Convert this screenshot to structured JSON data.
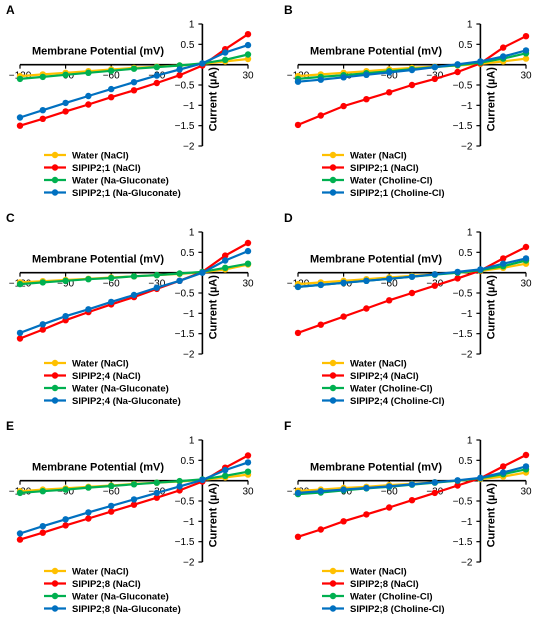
{
  "chart_data": [
    {
      "panel": "A",
      "type": "line",
      "xlabel": "Membrane Potential (mV)",
      "ylabel": "Current (µA)",
      "xlim": [
        -120,
        30
      ],
      "ylim": [
        -2,
        1
      ],
      "x_ticks": [
        -120,
        -90,
        -60,
        -30,
        30
      ],
      "y_ticks": [
        1,
        0.5,
        -0.5,
        -1,
        -1.5,
        -2
      ],
      "x": [
        -120,
        -105,
        -90,
        -75,
        -60,
        -45,
        -30,
        -15,
        0,
        15,
        30
      ],
      "series": [
        {
          "name": "Water (NaCl)",
          "color": "#FFC000",
          "values": [
            -0.28,
            -0.24,
            -0.2,
            -0.16,
            -0.12,
            -0.08,
            -0.05,
            -0.02,
            0.02,
            0.08,
            0.14
          ]
        },
        {
          "name": "SlPIP2;1 (NaCl)",
          "color": "#FF0000",
          "values": [
            -1.5,
            -1.33,
            -1.15,
            -0.98,
            -0.8,
            -0.63,
            -0.45,
            -0.26,
            -0.02,
            0.38,
            0.75
          ]
        },
        {
          "name": "Water (Na-Gluconate)",
          "color": "#00B050",
          "values": [
            -0.35,
            -0.3,
            -0.25,
            -0.2,
            -0.15,
            -0.1,
            -0.06,
            -0.02,
            0.03,
            0.12,
            0.25
          ]
        },
        {
          "name": "SlPIP2;1 (Na-Gluconate)",
          "color": "#0070C0",
          "values": [
            -1.3,
            -1.12,
            -0.94,
            -0.77,
            -0.6,
            -0.43,
            -0.27,
            -0.12,
            0.03,
            0.3,
            0.48
          ]
        }
      ],
      "legend": "bottom"
    },
    {
      "panel": "B",
      "type": "line",
      "xlabel": "Membrane Potential (mV)",
      "ylabel": "Current (µA)",
      "xlim": [
        -120,
        30
      ],
      "ylim": [
        -2,
        1
      ],
      "x_ticks": [
        -120,
        -90,
        -60,
        -30,
        30
      ],
      "y_ticks": [
        1,
        0.5,
        -0.5,
        -1,
        -1.5,
        -2
      ],
      "x": [
        -120,
        -105,
        -90,
        -75,
        -60,
        -45,
        -30,
        -15,
        0,
        15,
        30
      ],
      "series": [
        {
          "name": "Water (NaCl)",
          "color": "#FFC000",
          "values": [
            -0.28,
            -0.24,
            -0.2,
            -0.16,
            -0.12,
            -0.08,
            -0.05,
            -0.02,
            0.02,
            0.08,
            0.15
          ]
        },
        {
          "name": "SlPIP2;1 (NaCl)",
          "color": "#FF0000",
          "values": [
            -1.48,
            -1.25,
            -1.02,
            -0.85,
            -0.68,
            -0.5,
            -0.35,
            -0.18,
            0.03,
            0.42,
            0.7
          ]
        },
        {
          "name": "Water (Choline-Cl)",
          "color": "#00B050",
          "values": [
            -0.35,
            -0.3,
            -0.26,
            -0.21,
            -0.16,
            -0.11,
            -0.06,
            -0.01,
            0.05,
            0.15,
            0.28
          ]
        },
        {
          "name": "SlPIP2;1 (Choline-Cl)",
          "color": "#0070C0",
          "values": [
            -0.42,
            -0.37,
            -0.31,
            -0.25,
            -0.19,
            -0.13,
            -0.06,
            0.01,
            0.08,
            0.2,
            0.35
          ]
        }
      ],
      "legend": "bottom"
    },
    {
      "panel": "C",
      "type": "line",
      "xlabel": "Membrane Potential (mV)",
      "ylabel": "Current (µA)",
      "xlim": [
        -120,
        30
      ],
      "ylim": [
        -2,
        1
      ],
      "x_ticks": [
        -120,
        -90,
        -60,
        -30,
        30
      ],
      "y_ticks": [
        1,
        0.5,
        -0.5,
        -1,
        -1.5,
        -2
      ],
      "x": [
        -120,
        -105,
        -90,
        -75,
        -60,
        -45,
        -30,
        -15,
        0,
        15,
        30
      ],
      "series": [
        {
          "name": "Water (NaCl)",
          "color": "#FFC000",
          "values": [
            -0.24,
            -0.21,
            -0.18,
            -0.15,
            -0.12,
            -0.09,
            -0.06,
            -0.03,
            0.01,
            0.08,
            0.2
          ]
        },
        {
          "name": "SlPIP2;4 (NaCl)",
          "color": "#FF0000",
          "values": [
            -1.62,
            -1.4,
            -1.17,
            -0.97,
            -0.78,
            -0.6,
            -0.4,
            -0.2,
            0.02,
            0.42,
            0.73
          ]
        },
        {
          "name": "Water (Na-Gluconate)",
          "color": "#00B050",
          "values": [
            -0.28,
            -0.24,
            -0.2,
            -0.16,
            -0.13,
            -0.09,
            -0.06,
            -0.02,
            0.02,
            0.12,
            0.22
          ]
        },
        {
          "name": "SlPIP2;4 (Na-Gluconate)",
          "color": "#0070C0",
          "values": [
            -1.48,
            -1.27,
            -1.07,
            -0.9,
            -0.72,
            -0.55,
            -0.37,
            -0.2,
            0.0,
            0.3,
            0.53
          ]
        }
      ],
      "legend": "bottom"
    },
    {
      "panel": "D",
      "type": "line",
      "xlabel": "Membrane Potential (mV)",
      "ylabel": "Current (µA)",
      "xlim": [
        -120,
        30
      ],
      "ylim": [
        -2,
        1
      ],
      "x_ticks": [
        -120,
        -90,
        -60,
        -30,
        30
      ],
      "y_ticks": [
        1,
        0.5,
        -0.5,
        -1,
        -1.5,
        -2
      ],
      "x": [
        -120,
        -105,
        -90,
        -75,
        -60,
        -45,
        -30,
        -15,
        0,
        15,
        30
      ],
      "series": [
        {
          "name": "Water (NaCl)",
          "color": "#FFC000",
          "values": [
            -0.28,
            -0.24,
            -0.2,
            -0.16,
            -0.12,
            -0.08,
            -0.04,
            0.0,
            0.04,
            0.12,
            0.22
          ]
        },
        {
          "name": "SlPIP2;4 (NaCl)",
          "color": "#FF0000",
          "values": [
            -1.48,
            -1.28,
            -1.08,
            -0.88,
            -0.68,
            -0.5,
            -0.32,
            -0.14,
            0.05,
            0.35,
            0.63
          ]
        },
        {
          "name": "Water (Choline-Cl)",
          "color": "#00B050",
          "values": [
            -0.35,
            -0.3,
            -0.25,
            -0.2,
            -0.15,
            -0.1,
            -0.05,
            0.0,
            0.06,
            0.16,
            0.3
          ]
        },
        {
          "name": "SlPIP2;4 (Choline-Cl)",
          "color": "#0070C0",
          "values": [
            -0.35,
            -0.3,
            -0.25,
            -0.2,
            -0.15,
            -0.1,
            -0.04,
            0.02,
            0.08,
            0.22,
            0.35
          ]
        }
      ],
      "legend": "bottom"
    },
    {
      "panel": "E",
      "type": "line",
      "xlabel": "Membrane Potential (mV)",
      "ylabel": "Current (µA)",
      "xlim": [
        -120,
        30
      ],
      "ylim": [
        -2,
        1
      ],
      "x_ticks": [
        -120,
        -90,
        -60,
        -30,
        30
      ],
      "y_ticks": [
        1,
        0.5,
        -0.5,
        -1,
        -1.5,
        -2
      ],
      "x": [
        -120,
        -105,
        -90,
        -75,
        -60,
        -45,
        -30,
        -15,
        0,
        15,
        30
      ],
      "series": [
        {
          "name": "Water (NaCl)",
          "color": "#FFC000",
          "values": [
            -0.26,
            -0.22,
            -0.19,
            -0.15,
            -0.12,
            -0.08,
            -0.05,
            -0.02,
            0.02,
            0.08,
            0.15
          ]
        },
        {
          "name": "SlPIP2;8 (NaCl)",
          "color": "#FF0000",
          "values": [
            -1.45,
            -1.28,
            -1.1,
            -0.93,
            -0.76,
            -0.59,
            -0.42,
            -0.24,
            -0.02,
            0.32,
            0.62
          ]
        },
        {
          "name": "Water (Na-Gluconate)",
          "color": "#00B050",
          "values": [
            -0.3,
            -0.26,
            -0.22,
            -0.17,
            -0.13,
            -0.09,
            -0.05,
            -0.01,
            0.03,
            0.12,
            0.22
          ]
        },
        {
          "name": "SlPIP2;8 (Na-Gluconate)",
          "color": "#0070C0",
          "values": [
            -1.3,
            -1.12,
            -0.95,
            -0.78,
            -0.62,
            -0.46,
            -0.3,
            -0.14,
            0.02,
            0.26,
            0.45
          ]
        }
      ],
      "legend": "bottom"
    },
    {
      "panel": "F",
      "type": "line",
      "xlabel": "Membrane Potential (mV)",
      "ylabel": "Current (µA)",
      "xlim": [
        -120,
        30
      ],
      "ylim": [
        -2,
        1
      ],
      "x_ticks": [
        -120,
        -90,
        -60,
        -30,
        30
      ],
      "y_ticks": [
        1,
        0.5,
        -0.5,
        -1,
        -1.5,
        -2
      ],
      "x": [
        -120,
        -105,
        -90,
        -75,
        -60,
        -45,
        -30,
        -15,
        0,
        15,
        30
      ],
      "series": [
        {
          "name": "Water (NaCl)",
          "color": "#FFC000",
          "values": [
            -0.25,
            -0.22,
            -0.18,
            -0.15,
            -0.11,
            -0.08,
            -0.04,
            0.0,
            0.04,
            0.1,
            0.2
          ]
        },
        {
          "name": "SlPIP2;8 (NaCl)",
          "color": "#FF0000",
          "values": [
            -1.38,
            -1.2,
            -1.0,
            -0.83,
            -0.66,
            -0.48,
            -0.3,
            -0.12,
            0.06,
            0.35,
            0.63
          ]
        },
        {
          "name": "Water (Choline-Cl)",
          "color": "#00B050",
          "values": [
            -0.33,
            -0.29,
            -0.24,
            -0.19,
            -0.15,
            -0.1,
            -0.05,
            0.0,
            0.06,
            0.16,
            0.28
          ]
        },
        {
          "name": "SlPIP2;8 (Choline-Cl)",
          "color": "#0070C0",
          "values": [
            -0.3,
            -0.26,
            -0.22,
            -0.18,
            -0.14,
            -0.09,
            -0.04,
            0.01,
            0.07,
            0.2,
            0.35
          ]
        }
      ],
      "legend": "bottom"
    }
  ]
}
